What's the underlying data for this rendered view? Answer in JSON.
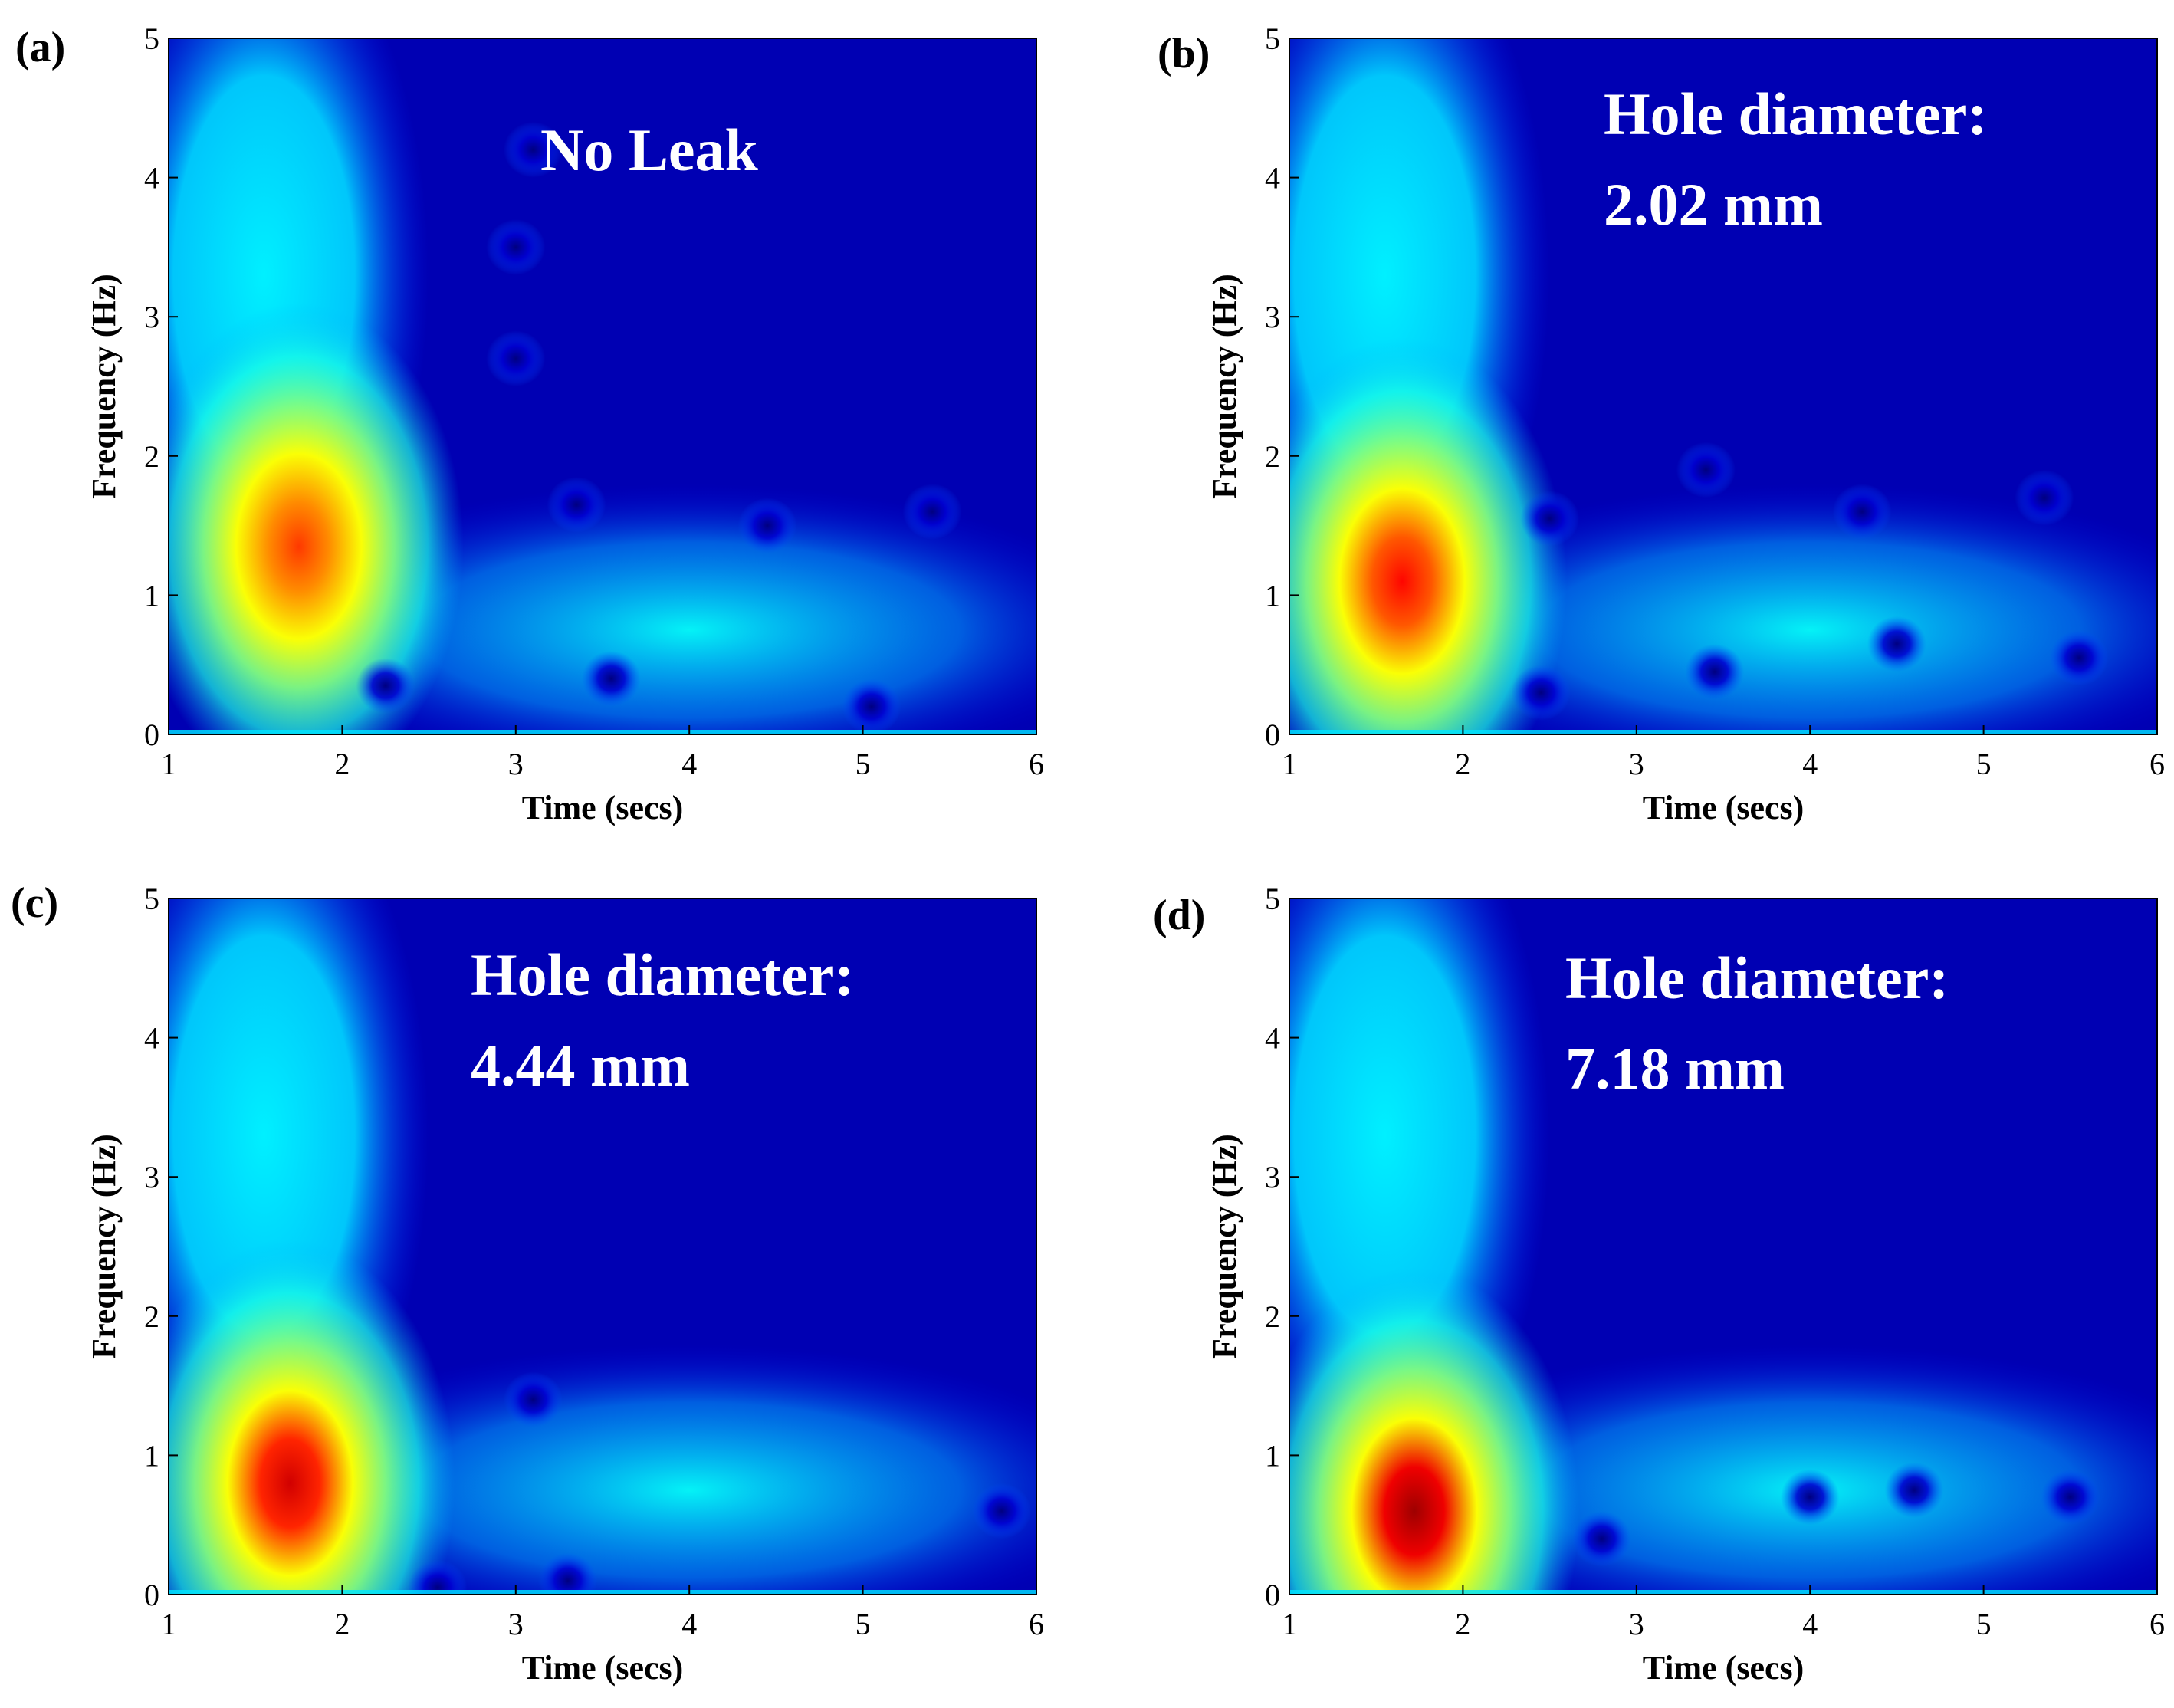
{
  "colors": {
    "background_colormap_low": "#00007f",
    "colormap": "jet"
  },
  "chart_data": [
    {
      "type": "heatmap",
      "panel_label": "(a)",
      "annotation": [
        "No Leak"
      ],
      "xlabel": "Time (secs)",
      "ylabel": "Frequency (Hz)",
      "xlim": [
        1,
        6
      ],
      "ylim": [
        0,
        5
      ],
      "xticks": [
        "1",
        "2",
        "3",
        "4",
        "5",
        "6"
      ],
      "yticks": [
        "0",
        "1",
        "2",
        "3",
        "4",
        "5"
      ],
      "colormap": "jet",
      "grid": false,
      "hotspot": {
        "time": 1.75,
        "frequency": 1.0,
        "intensity": 0.82
      },
      "minima": [
        [
          2.25,
          0.35
        ],
        [
          3.35,
          1.65
        ],
        [
          3.55,
          0.4
        ],
        [
          4.45,
          1.5
        ],
        [
          5.05,
          0.2
        ],
        [
          5.4,
          1.6
        ],
        [
          3.0,
          2.7
        ],
        [
          3.0,
          3.5
        ],
        [
          3.1,
          4.2
        ]
      ]
    },
    {
      "type": "heatmap",
      "panel_label": "(b)",
      "annotation": [
        "Hole diameter:",
        "2.02 mm"
      ],
      "xlabel": "Time (secs)",
      "ylabel": "Frequency (Hz)",
      "xlim": [
        1,
        6
      ],
      "ylim": [
        0,
        5
      ],
      "xticks": [
        "1",
        "2",
        "3",
        "4",
        "5",
        "6"
      ],
      "yticks": [
        "0",
        "1",
        "2",
        "3",
        "4",
        "5"
      ],
      "colormap": "jet",
      "grid": false,
      "hotspot": {
        "time": 1.65,
        "frequency": 0.75,
        "intensity": 0.87
      },
      "minima": [
        [
          2.45,
          0.3
        ],
        [
          2.5,
          1.55
        ],
        [
          3.45,
          0.45
        ],
        [
          3.4,
          1.9
        ],
        [
          4.5,
          0.65
        ],
        [
          4.3,
          1.6
        ],
        [
          5.55,
          0.55
        ],
        [
          5.35,
          1.7
        ]
      ]
    },
    {
      "type": "heatmap",
      "panel_label": "(c)",
      "annotation": [
        "Hole diameter:",
        "4.44 mm"
      ],
      "xlabel": "Time (secs)",
      "ylabel": "Frequency (Hz)",
      "xlim": [
        1,
        6
      ],
      "ylim": [
        0,
        5
      ],
      "xticks": [
        "1",
        "2",
        "3",
        "4",
        "5",
        "6"
      ],
      "yticks": [
        "0",
        "1",
        "2",
        "3",
        "4",
        "5"
      ],
      "colormap": "jet",
      "grid": false,
      "hotspot": {
        "time": 1.7,
        "frequency": 0.45,
        "intensity": 0.92
      },
      "minima": [
        [
          2.55,
          0.05
        ],
        [
          3.1,
          1.4
        ],
        [
          3.3,
          0.1
        ],
        [
          5.8,
          0.6
        ]
      ]
    },
    {
      "type": "heatmap",
      "panel_label": "(d)",
      "annotation": [
        "Hole diameter:",
        "7.18 mm"
      ],
      "xlabel": "Time (secs)",
      "ylabel": "Frequency (Hz)",
      "xlim": [
        1,
        6
      ],
      "ylim": [
        0,
        5
      ],
      "xticks": [
        "1",
        "2",
        "3",
        "4",
        "5",
        "6"
      ],
      "yticks": [
        "0",
        "1",
        "2",
        "3",
        "4",
        "5"
      ],
      "colormap": "jet",
      "grid": false,
      "hotspot": {
        "time": 1.72,
        "frequency": 0.25,
        "intensity": 0.97
      },
      "minima": [
        [
          2.8,
          0.4
        ],
        [
          4.0,
          0.7
        ],
        [
          4.6,
          0.75
        ],
        [
          5.5,
          0.7
        ]
      ]
    }
  ]
}
